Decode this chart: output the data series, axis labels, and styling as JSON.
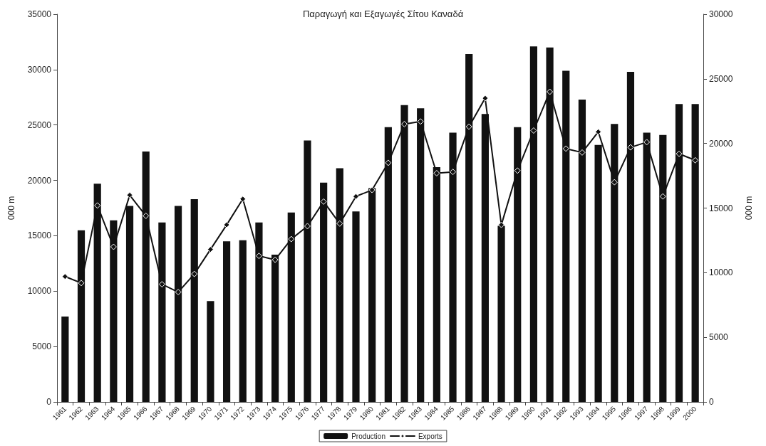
{
  "chart_data": {
    "type": "bar",
    "title": "Παραγωγή και Εξαγωγές Σίτου Καναδά",
    "categories": [
      "1961",
      "1962",
      "1963",
      "1964",
      "1965",
      "1966",
      "1967",
      "1968",
      "1969",
      "1970",
      "1971",
      "1972",
      "1973",
      "1974",
      "1975",
      "1976",
      "1977",
      "1978",
      "1979",
      "1980",
      "1981",
      "1982",
      "1983",
      "1984",
      "1985",
      "1986",
      "1987",
      "1988",
      "1989",
      "1990",
      "1991",
      "1992",
      "1993",
      "1994",
      "1995",
      "1996",
      "1997",
      "1998",
      "1999",
      "2000"
    ],
    "series": [
      {
        "name": "Production",
        "color": "#111111",
        "values": [
          7700,
          15500,
          19700,
          16400,
          17700,
          22600,
          16200,
          17700,
          18300,
          9100,
          14500,
          14600,
          16200,
          13300,
          17100,
          23600,
          19800,
          21100,
          17200,
          19300,
          24800,
          26800,
          26500,
          21200,
          24300,
          31400,
          26000,
          15900,
          24800,
          32100,
          32000,
          29900,
          27300,
          23200,
          25100,
          29800,
          24300,
          24100,
          26900,
          26900
        ]
      },
      {
        "name": "Exports",
        "type": "line",
        "axis": "y2",
        "color": "#111111",
        "values": [
          9700,
          9200,
          15200,
          12000,
          16000,
          14400,
          9100,
          8500,
          9900,
          11800,
          13700,
          15700,
          11300,
          11000,
          12600,
          13600,
          15500,
          13800,
          15900,
          16400,
          18500,
          21500,
          21700,
          17700,
          17800,
          21300,
          23500,
          13700,
          17900,
          21000,
          24000,
          19600,
          19300,
          20900,
          17000,
          19700,
          20100,
          15900,
          19200,
          18700
        ]
      }
    ],
    "ylabel": "000 m",
    "y2label": "000 m",
    "ylim": [
      0,
      35000
    ],
    "yticks": [
      0,
      5000,
      10000,
      15000,
      20000,
      25000,
      30000,
      35000
    ],
    "y2lim": [
      0,
      30000
    ],
    "y2ticks": [
      0,
      5000,
      10000,
      15000,
      20000,
      25000,
      30000
    ],
    "grid": false,
    "legend": "bottom",
    "marker": "diamond",
    "line_style": "solid"
  }
}
